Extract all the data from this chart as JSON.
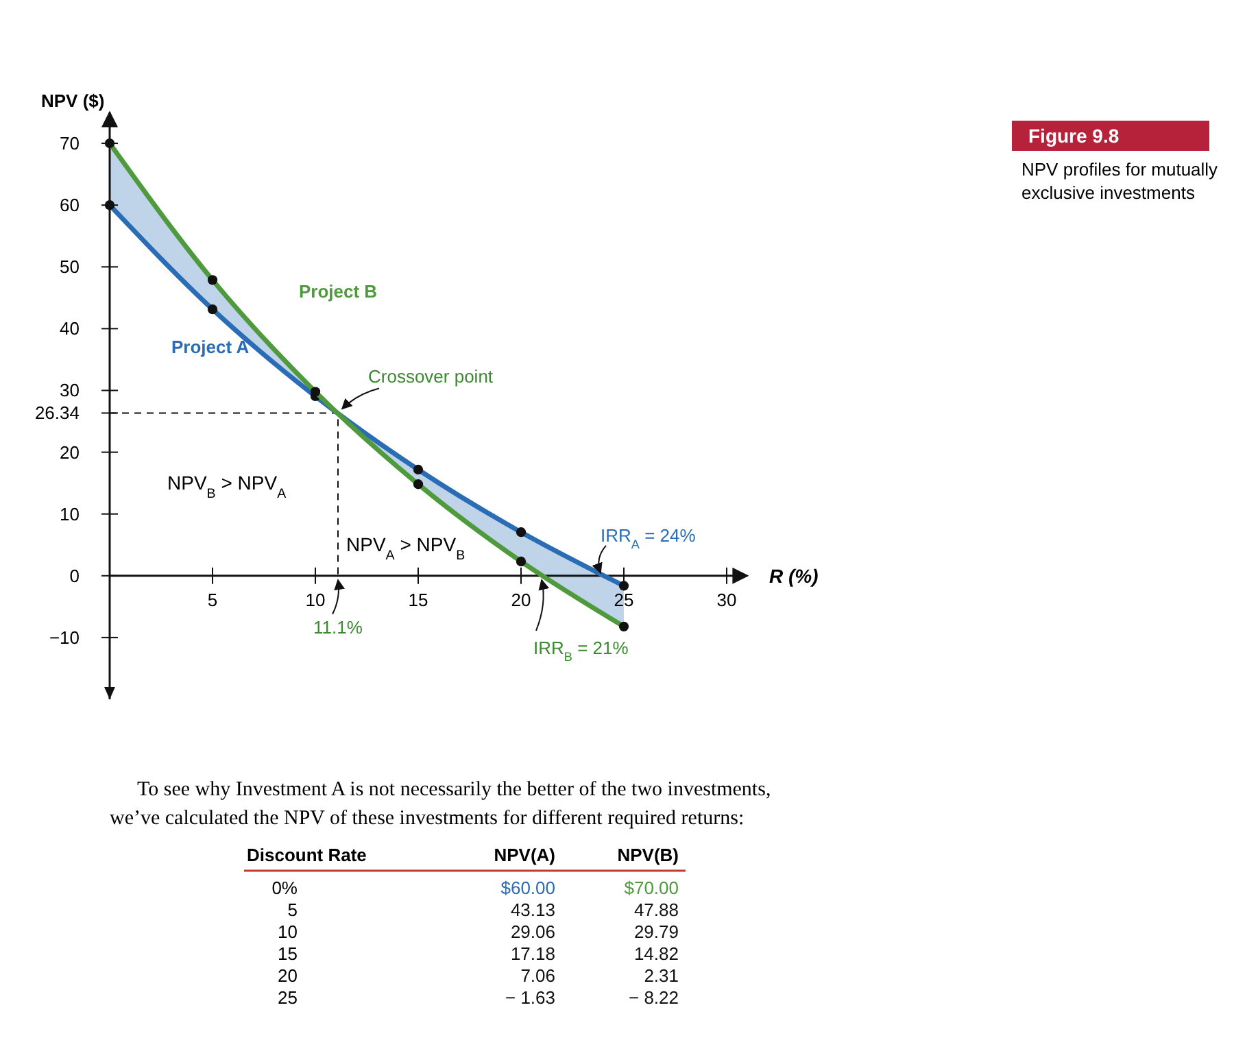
{
  "chart_data": {
    "type": "line",
    "title": "NPV profiles for mutually exclusive investments",
    "xlabel": "R (%)",
    "ylabel": "NPV ($)",
    "x": [
      0,
      5,
      10,
      15,
      20,
      25
    ],
    "series": [
      {
        "name": "Project A",
        "color": "#2a6db5",
        "values": [
          60,
          43.13,
          29.06,
          17.18,
          7.06,
          -1.63
        ],
        "lower": [
          60,
          43.13,
          29.06,
          14.82,
          2.31,
          -8.22
        ],
        "upper": [
          70,
          47.88,
          29.79,
          17.18,
          7.06,
          -1.63
        ]
      },
      {
        "name": "Project B",
        "color": "#4e9a3c",
        "values": [
          70,
          47.88,
          29.79,
          14.82,
          2.31,
          -8.22
        ]
      }
    ],
    "xlim": [
      0,
      31
    ],
    "xticks": [
      5,
      10,
      15,
      20,
      25,
      30
    ],
    "ylim": [
      -20,
      75
    ],
    "yticks": [
      -10,
      0,
      10,
      20,
      26.34,
      30,
      40,
      50,
      60,
      70
    ],
    "marker": "circle",
    "line_style": "solid",
    "grid": false,
    "annotations": [
      "Figure 9.8",
      {
        "text": "Crossover point",
        "x": 11.1,
        "y": 26.34
      },
      "11.1%",
      "NPV$_{B}$ > NPV$_{A}$",
      "NPV$_{A}$ > NPV$_{B}$",
      {
        "text": "IRR$_{A}$ = 24%",
        "x": 24,
        "y": 0
      },
      {
        "text": "IRR$_{B}$ = 21%",
        "x": 21,
        "y": 0
      },
      "To see why Investment A is not necessarily the better of the two investments, we’ve calculated the NPV of these investments for different required returns:",
      "Discount Rate",
      "NPV(A)",
      "NPV(B)",
      "0%",
      "5",
      "10",
      "15",
      "20",
      "25",
      "$60.00",
      "43.13",
      "29.06",
      "17.18",
      "7.06",
      "− 1.63",
      "$70.00",
      "47.88",
      "29.79",
      "14.82",
      "2.31",
      "− 8.22"
    ]
  }
}
